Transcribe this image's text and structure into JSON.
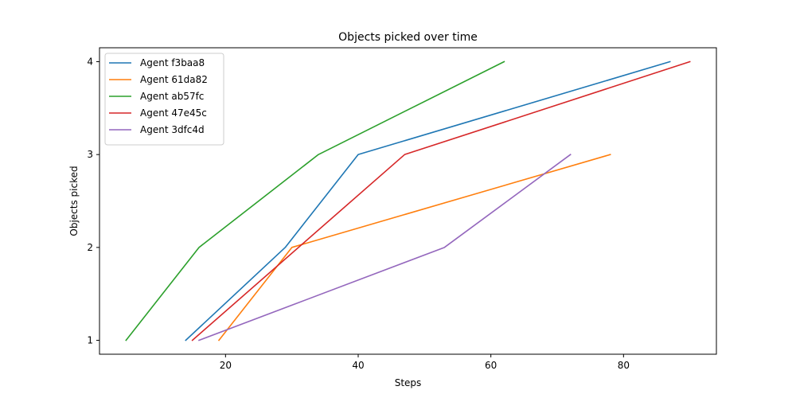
{
  "chart_data": {
    "type": "line",
    "title": "Objects picked over time",
    "xlabel": "Steps",
    "ylabel": "Objects picked",
    "xlim": [
      1.0,
      94.0
    ],
    "ylim": [
      0.85,
      4.15
    ],
    "xticks": [
      20,
      40,
      60,
      80
    ],
    "yticks": [
      1,
      2,
      3,
      4
    ],
    "grid": false,
    "legend_position": "top-left",
    "series": [
      {
        "name": "Agent f3baa8",
        "color": "#1f77b4",
        "x": [
          14,
          29,
          40,
          87
        ],
        "y": [
          1,
          2,
          3,
          4
        ]
      },
      {
        "name": "Agent 61da82",
        "color": "#ff7f0e",
        "x": [
          19,
          30,
          78
        ],
        "y": [
          1,
          2,
          3
        ]
      },
      {
        "name": "Agent ab57fc",
        "color": "#2ca02c",
        "x": [
          5,
          16,
          34,
          62
        ],
        "y": [
          1,
          2,
          3,
          4
        ]
      },
      {
        "name": "Agent 47e45c",
        "color": "#d62728",
        "x": [
          15,
          47,
          90
        ],
        "y": [
          1,
          3,
          4
        ]
      },
      {
        "name": "Agent 3dfc4d",
        "color": "#9467bd",
        "x": [
          16,
          53,
          72
        ],
        "y": [
          1,
          2,
          3
        ]
      }
    ]
  }
}
